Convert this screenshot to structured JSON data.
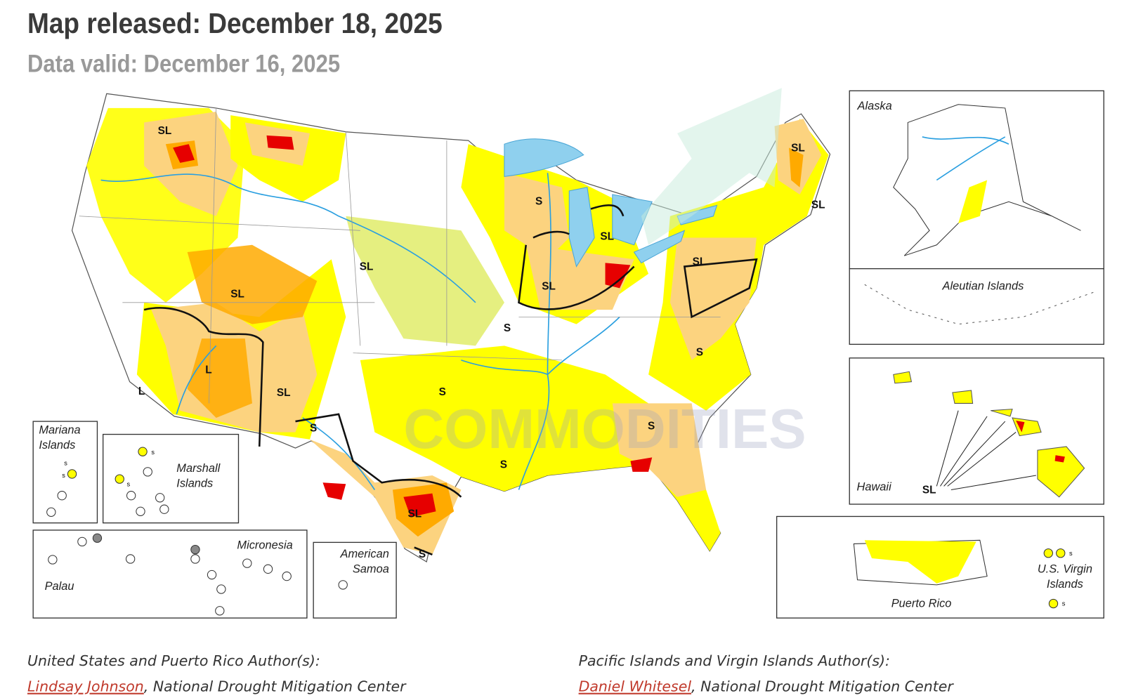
{
  "header": {
    "title": "Map released: December 18, 2025",
    "subtitle": "Data valid: December 16, 2025"
  },
  "map": {
    "impact_labels": [
      "SL",
      "SL",
      "SL",
      "S",
      "SL",
      "SL",
      "SL",
      "SL",
      "SL",
      "S",
      "S",
      "L",
      "L",
      "SL",
      "S",
      "S",
      "S",
      "S",
      "SL",
      "S",
      "SL"
    ],
    "watermark": "COMMODITIES"
  },
  "insets": {
    "alaska": "Alaska",
    "aleutian": "Aleutian Islands",
    "hawaii": "Hawaii",
    "puerto_rico": "Puerto Rico",
    "virgin_islands": [
      "U.S. Virgin",
      "Islands"
    ],
    "mariana": [
      "Mariana",
      "Islands"
    ],
    "marshall": [
      "Marshall",
      "Islands"
    ],
    "micronesia": "Micronesia",
    "palau": "Palau",
    "american_samoa": [
      "American",
      "Samoa"
    ],
    "small_labels": [
      "s",
      "s",
      "s",
      "s",
      "s",
      "s"
    ]
  },
  "authors": [
    {
      "heading": "United States and Puerto Rico Author(s):",
      "name": "Lindsay Johnson",
      "affiliation": ", National Drought Mitigation Center"
    },
    {
      "heading": "Pacific Islands and Virgin Islands Author(s):",
      "name": "Daniel Whitesel",
      "affiliation": ", National Drought Mitigation Center"
    }
  ]
}
